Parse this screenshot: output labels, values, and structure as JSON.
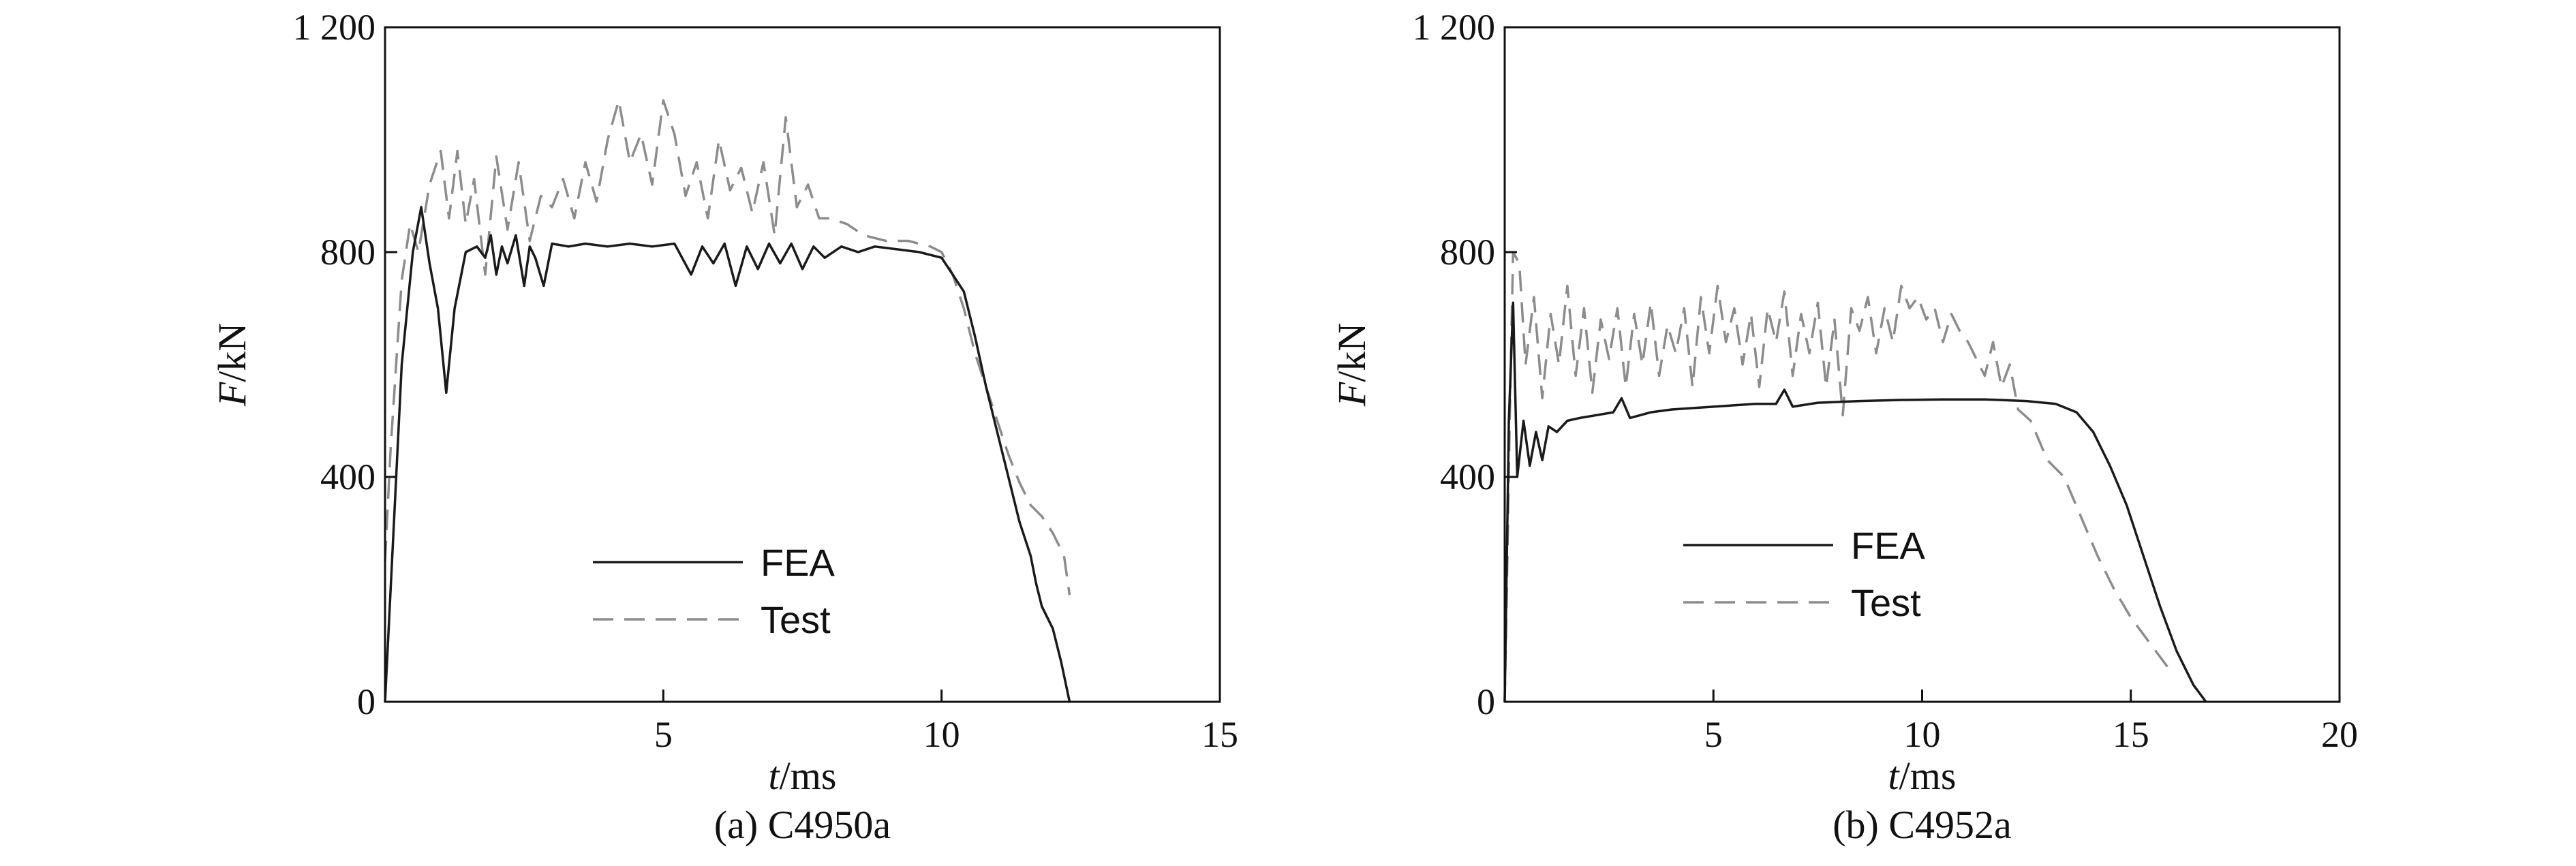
{
  "chart_data": [
    {
      "type": "line",
      "caption": "(a) C4950a",
      "xlabel_var": "t",
      "xlabel_unit": "/ms",
      "ylabel_var": "F",
      "ylabel_unit": "/kN",
      "xlim": [
        0,
        15
      ],
      "ylim": [
        0,
        1200
      ],
      "xticks": [
        5,
        10,
        15
      ],
      "xtick_labels": [
        "5",
        "10",
        "15"
      ],
      "yticks": [
        0,
        400,
        800,
        1200
      ],
      "ytick_labels": [
        "0",
        "400",
        "800",
        "1 200"
      ],
      "legend_position": "lower-center",
      "grid": false,
      "series": [
        {
          "name": "FEA",
          "style": "solid",
          "color": "#1a1a1a",
          "x": [
            0,
            0.15,
            0.3,
            0.5,
            0.65,
            0.8,
            0.95,
            1.1,
            1.25,
            1.45,
            1.65,
            1.8,
            1.9,
            2.0,
            2.1,
            2.2,
            2.35,
            2.5,
            2.6,
            2.7,
            2.85,
            3.0,
            3.3,
            3.6,
            4.0,
            4.4,
            4.8,
            5.2,
            5.5,
            5.7,
            5.9,
            6.1,
            6.3,
            6.5,
            6.7,
            6.9,
            7.1,
            7.3,
            7.5,
            7.7,
            7.9,
            8.2,
            8.5,
            8.8,
            9.2,
            9.6,
            10.0,
            10.2,
            10.4,
            10.6,
            10.8,
            11.0,
            11.2,
            11.4,
            11.6,
            11.7,
            11.8,
            12.0,
            12.15,
            12.3
          ],
          "y": [
            0,
            300,
            600,
            800,
            880,
            780,
            700,
            550,
            700,
            800,
            810,
            790,
            830,
            760,
            810,
            780,
            830,
            740,
            810,
            790,
            740,
            815,
            810,
            815,
            810,
            815,
            810,
            815,
            760,
            810,
            780,
            815,
            740,
            810,
            770,
            815,
            780,
            815,
            770,
            810,
            790,
            810,
            800,
            810,
            805,
            800,
            790,
            760,
            730,
            650,
            560,
            480,
            400,
            320,
            260,
            210,
            170,
            130,
            70,
            0
          ]
        },
        {
          "name": "Test",
          "style": "dashed",
          "color": "#8c8c8c",
          "x": [
            0,
            0.1,
            0.2,
            0.3,
            0.45,
            0.6,
            0.8,
            1.0,
            1.15,
            1.3,
            1.45,
            1.6,
            1.8,
            2.0,
            2.2,
            2.4,
            2.6,
            2.8,
            3.0,
            3.2,
            3.4,
            3.6,
            3.8,
            4.0,
            4.2,
            4.4,
            4.6,
            4.8,
            5.0,
            5.2,
            5.4,
            5.6,
            5.8,
            6.0,
            6.2,
            6.4,
            6.6,
            6.8,
            7.0,
            7.2,
            7.4,
            7.6,
            7.8,
            8.0,
            8.3,
            8.6,
            9.0,
            9.4,
            9.8,
            10.0,
            10.2,
            10.4,
            10.6,
            10.8,
            11.0,
            11.2,
            11.4,
            11.6,
            11.8,
            12.0,
            12.2,
            12.3
          ],
          "y": [
            250,
            450,
            600,
            750,
            850,
            800,
            920,
            980,
            860,
            980,
            850,
            930,
            760,
            970,
            840,
            960,
            820,
            900,
            880,
            930,
            860,
            960,
            890,
            1000,
            1070,
            960,
            1010,
            920,
            1070,
            1010,
            900,
            960,
            860,
            1000,
            910,
            950,
            870,
            960,
            830,
            1040,
            880,
            920,
            860,
            860,
            850,
            830,
            820,
            820,
            810,
            800,
            760,
            700,
            620,
            560,
            500,
            440,
            390,
            350,
            330,
            300,
            260,
            190
          ]
        }
      ]
    },
    {
      "type": "line",
      "caption": "(b) C4952a",
      "xlabel_var": "t",
      "xlabel_unit": "/ms",
      "ylabel_var": "F",
      "ylabel_unit": "/kN",
      "xlim": [
        0,
        20
      ],
      "ylim": [
        0,
        1200
      ],
      "xticks": [
        5,
        10,
        15,
        20
      ],
      "xtick_labels": [
        "5",
        "10",
        "15",
        "20"
      ],
      "yticks": [
        0,
        400,
        800,
        1200
      ],
      "ytick_labels": [
        "0",
        "400",
        "800",
        "1 200"
      ],
      "legend_position": "lower-center",
      "grid": false,
      "series": [
        {
          "name": "FEA",
          "style": "solid",
          "color": "#1a1a1a",
          "x": [
            0,
            0.1,
            0.2,
            0.3,
            0.45,
            0.6,
            0.75,
            0.9,
            1.05,
            1.25,
            1.5,
            1.8,
            2.2,
            2.6,
            2.8,
            3.0,
            3.5,
            4.0,
            5.0,
            6.0,
            6.5,
            6.7,
            6.9,
            7.5,
            8.5,
            9.5,
            10.5,
            11.5,
            12.5,
            13.2,
            13.7,
            14.1,
            14.5,
            14.9,
            15.3,
            15.7,
            16.1,
            16.5,
            16.8
          ],
          "y": [
            0,
            500,
            710,
            400,
            500,
            420,
            480,
            430,
            490,
            480,
            500,
            505,
            510,
            515,
            540,
            505,
            515,
            520,
            525,
            530,
            530,
            555,
            525,
            532,
            535,
            537,
            538,
            538,
            535,
            530,
            515,
            480,
            420,
            350,
            260,
            170,
            90,
            30,
            0
          ]
        },
        {
          "name": "Test",
          "style": "dashed",
          "color": "#8c8c8c",
          "x": [
            0,
            0.05,
            0.12,
            0.2,
            0.35,
            0.5,
            0.7,
            0.9,
            1.1,
            1.3,
            1.5,
            1.7,
            1.9,
            2.1,
            2.3,
            2.5,
            2.7,
            2.9,
            3.1,
            3.3,
            3.5,
            3.7,
            3.9,
            4.1,
            4.3,
            4.5,
            4.7,
            4.9,
            5.1,
            5.3,
            5.5,
            5.7,
            5.9,
            6.1,
            6.3,
            6.5,
            6.7,
            6.9,
            7.1,
            7.3,
            7.5,
            7.7,
            7.9,
            8.1,
            8.3,
            8.5,
            8.7,
            8.9,
            9.1,
            9.3,
            9.5,
            9.7,
            9.9,
            10.1,
            10.3,
            10.5,
            10.7,
            10.9,
            11.1,
            11.3,
            11.5,
            11.7,
            11.9,
            12.1,
            12.3,
            12.6,
            13.0,
            13.4,
            13.8,
            14.2,
            14.6,
            15.0,
            15.4,
            15.8,
            16.0
          ],
          "y": [
            0,
            200,
            500,
            800,
            780,
            600,
            720,
            540,
            690,
            600,
            740,
            580,
            700,
            550,
            680,
            610,
            700,
            560,
            690,
            600,
            710,
            580,
            670,
            620,
            700,
            560,
            720,
            620,
            740,
            640,
            700,
            600,
            690,
            560,
            700,
            640,
            730,
            580,
            690,
            620,
            710,
            560,
            680,
            510,
            700,
            660,
            720,
            620,
            700,
            640,
            740,
            700,
            720,
            680,
            700,
            640,
            690,
            660,
            640,
            610,
            580,
            640,
            560,
            600,
            520,
            500,
            430,
            400,
            330,
            260,
            200,
            150,
            110,
            70,
            50
          ]
        }
      ]
    }
  ]
}
